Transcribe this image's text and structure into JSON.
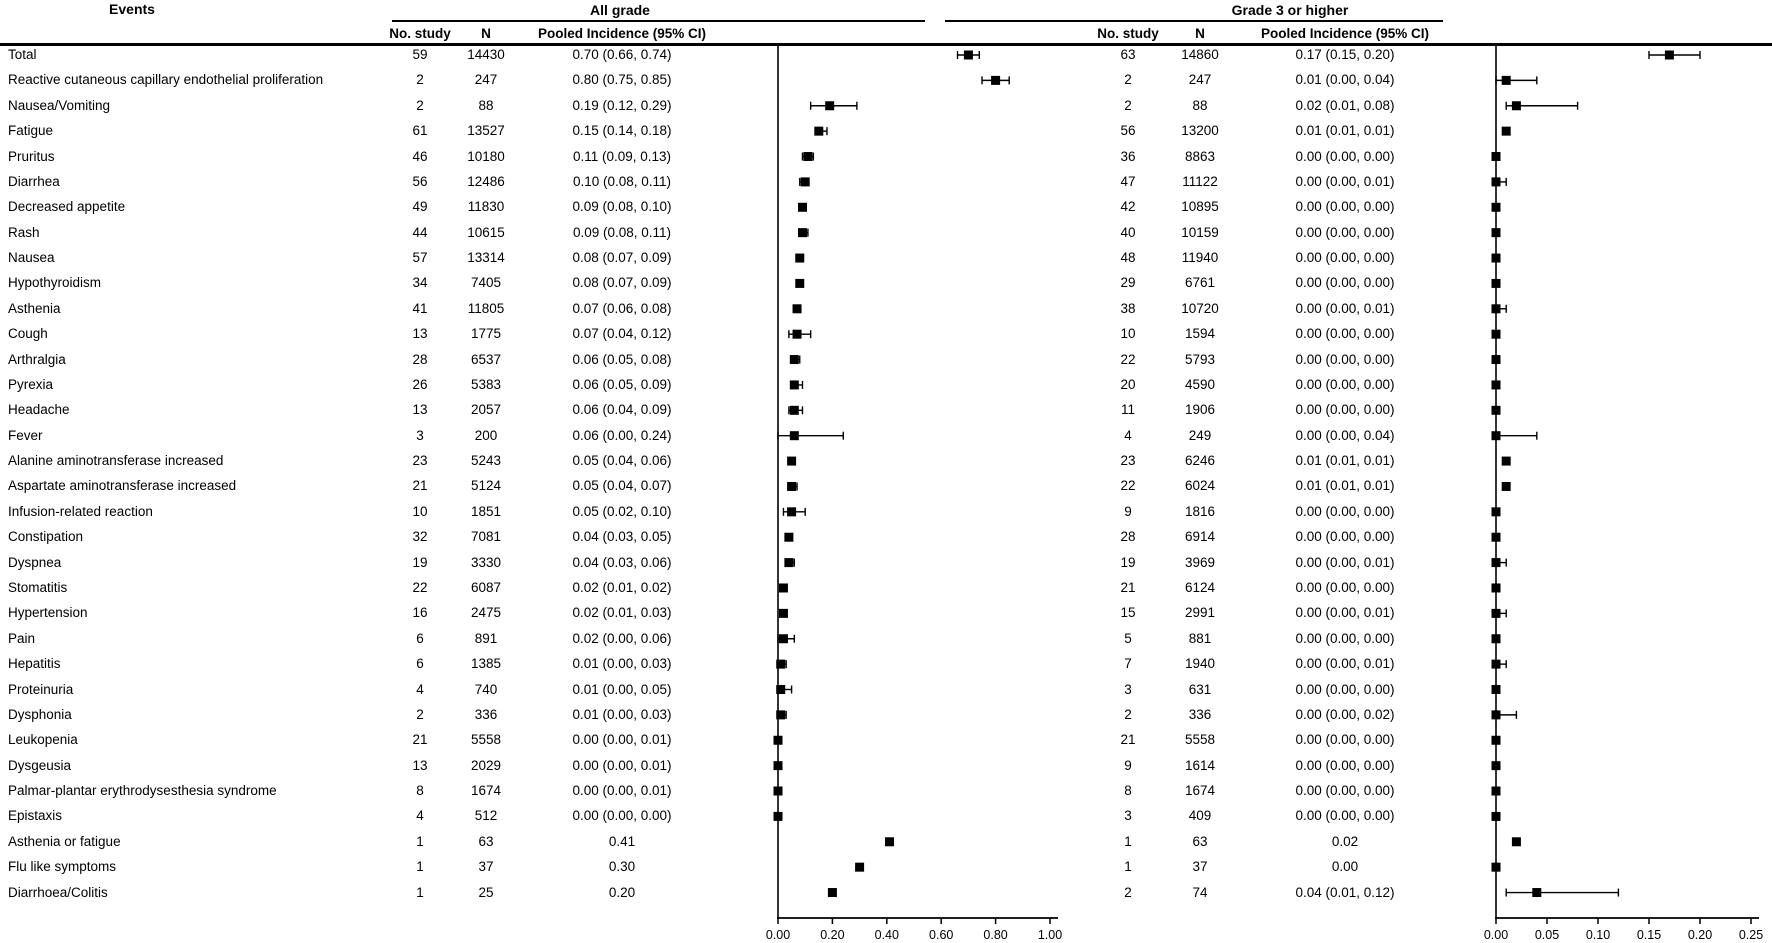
{
  "colors": {
    "background": "#ffffff",
    "ink": "#000000",
    "marker": "#000000"
  },
  "header": {
    "events_label": "Events",
    "all_grade_label": "All grade",
    "grade3_label": "Grade 3 or higher",
    "subheaders": {
      "no_study": "No. study",
      "n": "N",
      "pooled": "Pooled Incidence (95% CI)"
    }
  },
  "rows": [
    {
      "event": "Total",
      "ag_no": "59",
      "ag_n": "14430",
      "ag_ci": "0.70 (0.66, 0.74)",
      "g3_no": "63",
      "g3_n": "14860",
      "g3_ci": "0.17 (0.15, 0.20)"
    },
    {
      "event": "Reactive cutaneous capillary endothelial proliferation",
      "ag_no": "2",
      "ag_n": "247",
      "ag_ci": "0.80 (0.75, 0.85)",
      "g3_no": "2",
      "g3_n": "247",
      "g3_ci": "0.01 (0.00, 0.04)"
    },
    {
      "event": "Nausea/Vomiting",
      "ag_no": "2",
      "ag_n": "88",
      "ag_ci": "0.19 (0.12, 0.29)",
      "g3_no": "2",
      "g3_n": "88",
      "g3_ci": "0.02 (0.01, 0.08)"
    },
    {
      "event": "Fatigue",
      "ag_no": "61",
      "ag_n": "13527",
      "ag_ci": "0.15 (0.14, 0.18)",
      "g3_no": "56",
      "g3_n": "13200",
      "g3_ci": "0.01 (0.01, 0.01)"
    },
    {
      "event": "Pruritus",
      "ag_no": "46",
      "ag_n": "10180",
      "ag_ci": "0.11 (0.09, 0.13)",
      "g3_no": "36",
      "g3_n": "8863",
      "g3_ci": "0.00 (0.00, 0.00)"
    },
    {
      "event": "Diarrhea",
      "ag_no": "56",
      "ag_n": "12486",
      "ag_ci": "0.10 (0.08, 0.11)",
      "g3_no": "47",
      "g3_n": "11122",
      "g3_ci": "0.00 (0.00, 0.01)"
    },
    {
      "event": "Decreased appetite",
      "ag_no": "49",
      "ag_n": "11830",
      "ag_ci": "0.09 (0.08, 0.10)",
      "g3_no": "42",
      "g3_n": "10895",
      "g3_ci": "0.00 (0.00, 0.00)"
    },
    {
      "event": "Rash",
      "ag_no": "44",
      "ag_n": "10615",
      "ag_ci": "0.09 (0.08, 0.11)",
      "g3_no": "40",
      "g3_n": "10159",
      "g3_ci": "0.00 (0.00, 0.00)"
    },
    {
      "event": "Nausea",
      "ag_no": "57",
      "ag_n": "13314",
      "ag_ci": "0.08 (0.07, 0.09)",
      "g3_no": "48",
      "g3_n": "11940",
      "g3_ci": "0.00 (0.00, 0.00)"
    },
    {
      "event": "Hypothyroidism",
      "ag_no": "34",
      "ag_n": "7405",
      "ag_ci": "0.08 (0.07, 0.09)",
      "g3_no": "29",
      "g3_n": "6761",
      "g3_ci": "0.00 (0.00, 0.00)"
    },
    {
      "event": "Asthenia",
      "ag_no": "41",
      "ag_n": "11805",
      "ag_ci": "0.07 (0.06, 0.08)",
      "g3_no": "38",
      "g3_n": "10720",
      "g3_ci": "0.00 (0.00, 0.01)"
    },
    {
      "event": "Cough",
      "ag_no": "13",
      "ag_n": "1775",
      "ag_ci": "0.07 (0.04, 0.12)",
      "g3_no": "10",
      "g3_n": "1594",
      "g3_ci": "0.00 (0.00, 0.00)"
    },
    {
      "event": "Arthralgia",
      "ag_no": "28",
      "ag_n": "6537",
      "ag_ci": "0.06 (0.05, 0.08)",
      "g3_no": "22",
      "g3_n": "5793",
      "g3_ci": "0.00 (0.00, 0.00)"
    },
    {
      "event": "Pyrexia",
      "ag_no": "26",
      "ag_n": "5383",
      "ag_ci": "0.06 (0.05, 0.09)",
      "g3_no": "20",
      "g3_n": "4590",
      "g3_ci": "0.00 (0.00, 0.00)"
    },
    {
      "event": "Headache",
      "ag_no": "13",
      "ag_n": "2057",
      "ag_ci": "0.06 (0.04, 0.09)",
      "g3_no": "11",
      "g3_n": "1906",
      "g3_ci": "0.00 (0.00, 0.00)"
    },
    {
      "event": "Fever",
      "ag_no": "3",
      "ag_n": "200",
      "ag_ci": "0.06 (0.00, 0.24)",
      "g3_no": "4",
      "g3_n": "249",
      "g3_ci": "0.00 (0.00, 0.04)"
    },
    {
      "event": "Alanine aminotransferase increased",
      "ag_no": "23",
      "ag_n": "5243",
      "ag_ci": "0.05 (0.04, 0.06)",
      "g3_no": "23",
      "g3_n": "6246",
      "g3_ci": "0.01 (0.01, 0.01)"
    },
    {
      "event": "Aspartate aminotransferase increased",
      "ag_no": "21",
      "ag_n": "5124",
      "ag_ci": "0.05 (0.04, 0.07)",
      "g3_no": "22",
      "g3_n": "6024",
      "g3_ci": "0.01 (0.01, 0.01)"
    },
    {
      "event": "Infusion-related reaction",
      "ag_no": "10",
      "ag_n": "1851",
      "ag_ci": "0.05 (0.02, 0.10)",
      "g3_no": "9",
      "g3_n": "1816",
      "g3_ci": "0.00 (0.00, 0.00)"
    },
    {
      "event": "Constipation",
      "ag_no": "32",
      "ag_n": "7081",
      "ag_ci": "0.04 (0.03, 0.05)",
      "g3_no": "28",
      "g3_n": "6914",
      "g3_ci": "0.00 (0.00, 0.00)"
    },
    {
      "event": "Dyspnea",
      "ag_no": "19",
      "ag_n": "3330",
      "ag_ci": "0.04 (0.03, 0.06)",
      "g3_no": "19",
      "g3_n": "3969",
      "g3_ci": "0.00 (0.00, 0.01)"
    },
    {
      "event": "Stomatitis",
      "ag_no": "22",
      "ag_n": "6087",
      "ag_ci": "0.02 (0.01, 0.02)",
      "g3_no": "21",
      "g3_n": "6124",
      "g3_ci": "0.00 (0.00, 0.00)"
    },
    {
      "event": "Hypertension",
      "ag_no": "16",
      "ag_n": "2475",
      "ag_ci": "0.02 (0.01, 0.03)",
      "g3_no": "15",
      "g3_n": "2991",
      "g3_ci": "0.00 (0.00, 0.01)"
    },
    {
      "event": "Pain",
      "ag_no": "6",
      "ag_n": "891",
      "ag_ci": "0.02 (0.00, 0.06)",
      "g3_no": "5",
      "g3_n": "881",
      "g3_ci": "0.00 (0.00, 0.00)"
    },
    {
      "event": "Hepatitis",
      "ag_no": "6",
      "ag_n": "1385",
      "ag_ci": "0.01 (0.00, 0.03)",
      "g3_no": "7",
      "g3_n": "1940",
      "g3_ci": "0.00 (0.00, 0.01)"
    },
    {
      "event": "Proteinuria",
      "ag_no": "4",
      "ag_n": "740",
      "ag_ci": "0.01 (0.00, 0.05)",
      "g3_no": "3",
      "g3_n": "631",
      "g3_ci": "0.00 (0.00, 0.00)"
    },
    {
      "event": "Dysphonia",
      "ag_no": "2",
      "ag_n": "336",
      "ag_ci": "0.01 (0.00, 0.03)",
      "g3_no": "2",
      "g3_n": "336",
      "g3_ci": "0.00 (0.00, 0.02)"
    },
    {
      "event": "Leukopenia",
      "ag_no": "21",
      "ag_n": "5558",
      "ag_ci": "0.00 (0.00, 0.01)",
      "g3_no": "21",
      "g3_n": "5558",
      "g3_ci": "0.00 (0.00, 0.00)"
    },
    {
      "event": "Dysgeusia",
      "ag_no": "13",
      "ag_n": "2029",
      "ag_ci": "0.00 (0.00, 0.01)",
      "g3_no": "9",
      "g3_n": "1614",
      "g3_ci": "0.00 (0.00, 0.00)"
    },
    {
      "event": "Palmar-plantar erythrodysesthesia syndrome",
      "ag_no": "8",
      "ag_n": "1674",
      "ag_ci": "0.00 (0.00, 0.01)",
      "g3_no": "8",
      "g3_n": "1674",
      "g3_ci": "0.00 (0.00, 0.00)"
    },
    {
      "event": "Epistaxis",
      "ag_no": "4",
      "ag_n": "512",
      "ag_ci": "0.00 (0.00, 0.00)",
      "g3_no": "3",
      "g3_n": "409",
      "g3_ci": "0.00 (0.00, 0.00)"
    },
    {
      "event": "Asthenia or fatigue",
      "ag_no": "1",
      "ag_n": "63",
      "ag_ci": "0.41",
      "g3_no": "1",
      "g3_n": "63",
      "g3_ci": "0.02"
    },
    {
      "event": "Flu like symptoms",
      "ag_no": "1",
      "ag_n": "37",
      "ag_ci": "0.30",
      "g3_no": "1",
      "g3_n": "37",
      "g3_ci": "0.00"
    },
    {
      "event": "Diarrhoea/Colitis",
      "ag_no": "1",
      "ag_n": "25",
      "ag_ci": "0.20",
      "g3_no": "2",
      "g3_n": "74",
      "g3_ci": "0.04 (0.01, 0.12)"
    }
  ],
  "chart_data": {
    "type": "forest",
    "categories": [
      "Total",
      "Reactive cutaneous capillary endothelial proliferation",
      "Nausea/Vomiting",
      "Fatigue",
      "Pruritus",
      "Diarrhea",
      "Decreased appetite",
      "Rash",
      "Nausea",
      "Hypothyroidism",
      "Asthenia",
      "Cough",
      "Arthralgia",
      "Pyrexia",
      "Headache",
      "Fever",
      "Alanine aminotransferase increased",
      "Aspartate aminotransferase increased",
      "Infusion-related reaction",
      "Constipation",
      "Dyspnea",
      "Stomatitis",
      "Hypertension",
      "Pain",
      "Hepatitis",
      "Proteinuria",
      "Dysphonia",
      "Leukopenia",
      "Dysgeusia",
      "Palmar-plantar erythrodysesthesia syndrome",
      "Epistaxis",
      "Asthenia or fatigue",
      "Flu like symptoms",
      "Diarrhoea/Colitis"
    ],
    "panels": [
      {
        "title": "All grade",
        "xlabel": "Pooled Incidence",
        "xlim": [
          0,
          1.0
        ],
        "xticks": [
          "0.00",
          "0.20",
          "0.40",
          "0.60",
          "0.80",
          "1.00"
        ],
        "points": [
          [
            0.7,
            0.66,
            0.74
          ],
          [
            0.8,
            0.75,
            0.85
          ],
          [
            0.19,
            0.12,
            0.29
          ],
          [
            0.15,
            0.14,
            0.18
          ],
          [
            0.11,
            0.09,
            0.13
          ],
          [
            0.1,
            0.08,
            0.11
          ],
          [
            0.09,
            0.08,
            0.1
          ],
          [
            0.09,
            0.08,
            0.11
          ],
          [
            0.08,
            0.07,
            0.09
          ],
          [
            0.08,
            0.07,
            0.09
          ],
          [
            0.07,
            0.06,
            0.08
          ],
          [
            0.07,
            0.04,
            0.12
          ],
          [
            0.06,
            0.05,
            0.08
          ],
          [
            0.06,
            0.05,
            0.09
          ],
          [
            0.06,
            0.04,
            0.09
          ],
          [
            0.06,
            0.0,
            0.24
          ],
          [
            0.05,
            0.04,
            0.06
          ],
          [
            0.05,
            0.04,
            0.07
          ],
          [
            0.05,
            0.02,
            0.1
          ],
          [
            0.04,
            0.03,
            0.05
          ],
          [
            0.04,
            0.03,
            0.06
          ],
          [
            0.02,
            0.01,
            0.02
          ],
          [
            0.02,
            0.01,
            0.03
          ],
          [
            0.02,
            0.0,
            0.06
          ],
          [
            0.01,
            0.0,
            0.03
          ],
          [
            0.01,
            0.0,
            0.05
          ],
          [
            0.01,
            0.0,
            0.03
          ],
          [
            0.0,
            0.0,
            0.01
          ],
          [
            0.0,
            0.0,
            0.01
          ],
          [
            0.0,
            0.0,
            0.01
          ],
          [
            0.0,
            0.0,
            0.0
          ],
          [
            0.41,
            null,
            null
          ],
          [
            0.3,
            null,
            null
          ],
          [
            0.2,
            null,
            null
          ]
        ]
      },
      {
        "title": "Grade 3 or higher",
        "xlabel": "Pooled Incidence",
        "xlim": [
          0,
          0.25
        ],
        "xticks": [
          "0.00",
          "0.05",
          "0.10",
          "0.15",
          "0.20",
          "0.25"
        ],
        "points": [
          [
            0.17,
            0.15,
            0.2
          ],
          [
            0.01,
            0.0,
            0.04
          ],
          [
            0.02,
            0.01,
            0.08
          ],
          [
            0.01,
            0.01,
            0.01
          ],
          [
            0.0,
            0.0,
            0.0
          ],
          [
            0.0,
            0.0,
            0.01
          ],
          [
            0.0,
            0.0,
            0.0
          ],
          [
            0.0,
            0.0,
            0.0
          ],
          [
            0.0,
            0.0,
            0.0
          ],
          [
            0.0,
            0.0,
            0.0
          ],
          [
            0.0,
            0.0,
            0.01
          ],
          [
            0.0,
            0.0,
            0.0
          ],
          [
            0.0,
            0.0,
            0.0
          ],
          [
            0.0,
            0.0,
            0.0
          ],
          [
            0.0,
            0.0,
            0.0
          ],
          [
            0.0,
            0.0,
            0.04
          ],
          [
            0.01,
            0.01,
            0.01
          ],
          [
            0.01,
            0.01,
            0.01
          ],
          [
            0.0,
            0.0,
            0.0
          ],
          [
            0.0,
            0.0,
            0.0
          ],
          [
            0.0,
            0.0,
            0.01
          ],
          [
            0.0,
            0.0,
            0.0
          ],
          [
            0.0,
            0.0,
            0.01
          ],
          [
            0.0,
            0.0,
            0.0
          ],
          [
            0.0,
            0.0,
            0.01
          ],
          [
            0.0,
            0.0,
            0.0
          ],
          [
            0.0,
            0.0,
            0.02
          ],
          [
            0.0,
            0.0,
            0.0
          ],
          [
            0.0,
            0.0,
            0.0
          ],
          [
            0.0,
            0.0,
            0.0
          ],
          [
            0.0,
            0.0,
            0.0
          ],
          [
            0.02,
            null,
            null
          ],
          [
            0.0,
            null,
            null
          ],
          [
            0.04,
            0.01,
            0.12
          ]
        ]
      }
    ]
  }
}
